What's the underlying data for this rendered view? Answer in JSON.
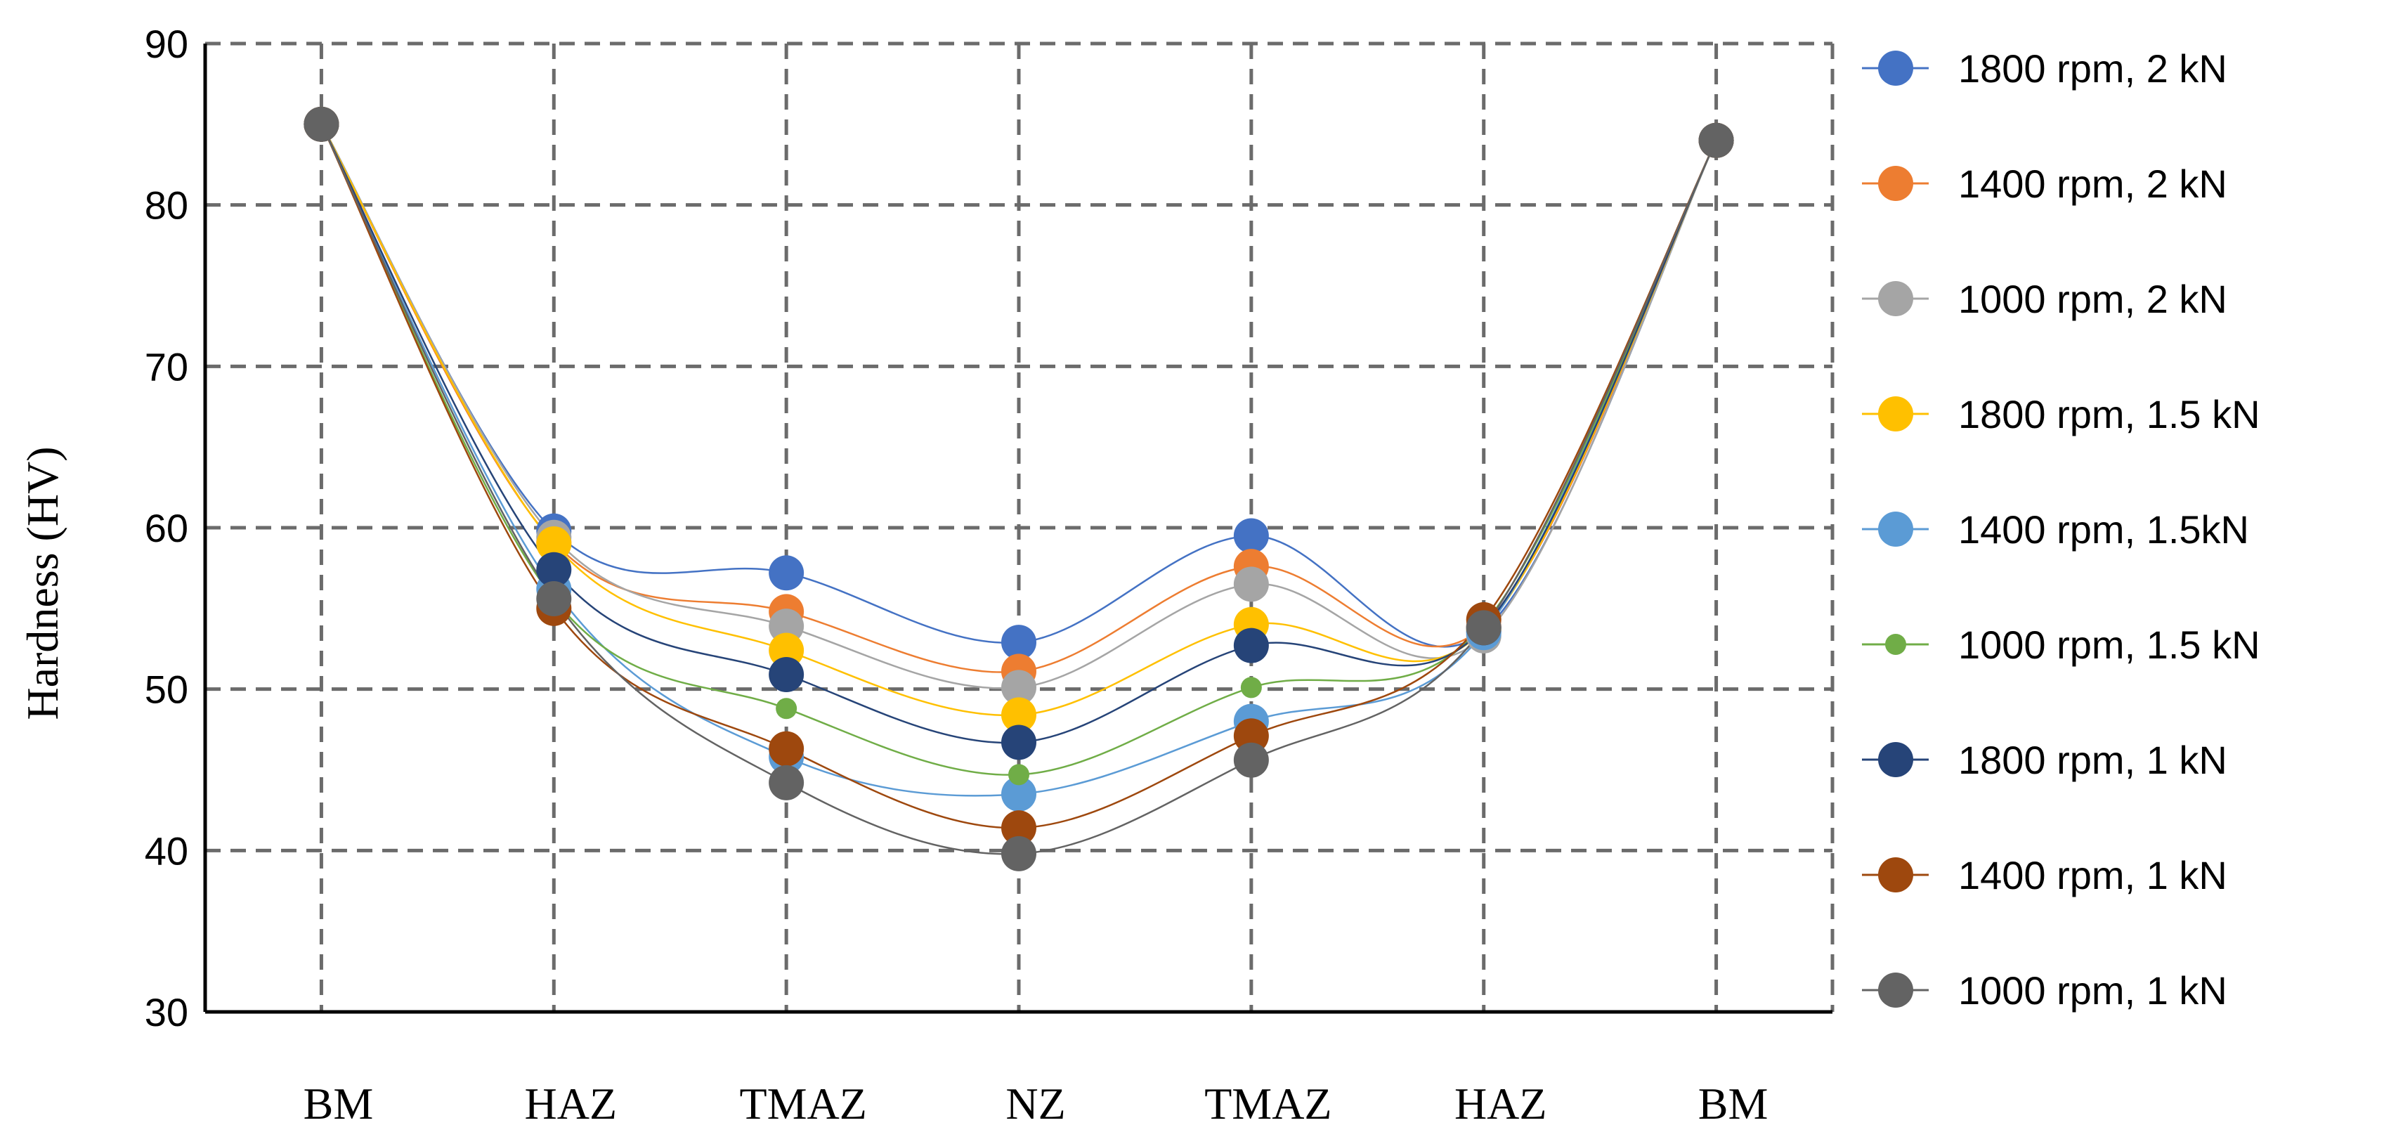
{
  "chart_data": {
    "type": "line",
    "ylabel": "Hardness (HV)",
    "xlabel": "",
    "ylim": [
      30,
      90
    ],
    "yticks": [
      30,
      40,
      50,
      60,
      70,
      80,
      90
    ],
    "categories": [
      "BM",
      "HAZ",
      "TMAZ",
      "NZ",
      "TMAZ",
      "HAZ",
      "BM"
    ],
    "grid": true,
    "legend_position": "right",
    "smooth": true,
    "series": [
      {
        "name": "1800 rpm, 2 kN",
        "color": "#4472C4",
        "marker": "large",
        "values": [
          85,
          59.8,
          57.2,
          52.9,
          59.5,
          53.6,
          84
        ]
      },
      {
        "name": "1400 rpm, 2 kN",
        "color": "#ED7D31",
        "marker": "large",
        "values": [
          85,
          59.1,
          54.8,
          51.1,
          57.6,
          53.9,
          84
        ]
      },
      {
        "name": "1000 rpm, 2 kN",
        "color": "#A5A5A5",
        "marker": "large",
        "values": [
          85,
          59.4,
          53.9,
          50.1,
          56.5,
          53.3,
          84
        ]
      },
      {
        "name": "1800 rpm, 1.5 kN",
        "color": "#FFC000",
        "marker": "large",
        "values": [
          85,
          59.0,
          52.4,
          48.4,
          54.0,
          53.7,
          84
        ]
      },
      {
        "name": "1400 rpm, 1.5kN",
        "color": "#5B9BD5",
        "marker": "large",
        "values": [
          85,
          56.2,
          45.8,
          43.5,
          48.0,
          53.5,
          84
        ]
      },
      {
        "name": "1000 rpm, 1.5 kN",
        "color": "#70AD47",
        "marker": "small",
        "values": [
          85,
          55.6,
          48.8,
          44.7,
          50.1,
          54.0,
          84
        ]
      },
      {
        "name": "1800 rpm, 1 kN",
        "color": "#264478",
        "marker": "large",
        "values": [
          85,
          57.4,
          50.9,
          46.7,
          52.7,
          53.8,
          84
        ]
      },
      {
        "name": "1400 rpm, 1 kN",
        "color": "#9E480E",
        "marker": "large",
        "values": [
          85,
          55.0,
          46.3,
          41.4,
          47.1,
          54.3,
          84
        ]
      },
      {
        "name": "1000 rpm, 1 kN",
        "color": "#636363",
        "marker": "large",
        "values": [
          85,
          55.6,
          44.2,
          39.8,
          45.6,
          53.8,
          84
        ]
      }
    ]
  }
}
